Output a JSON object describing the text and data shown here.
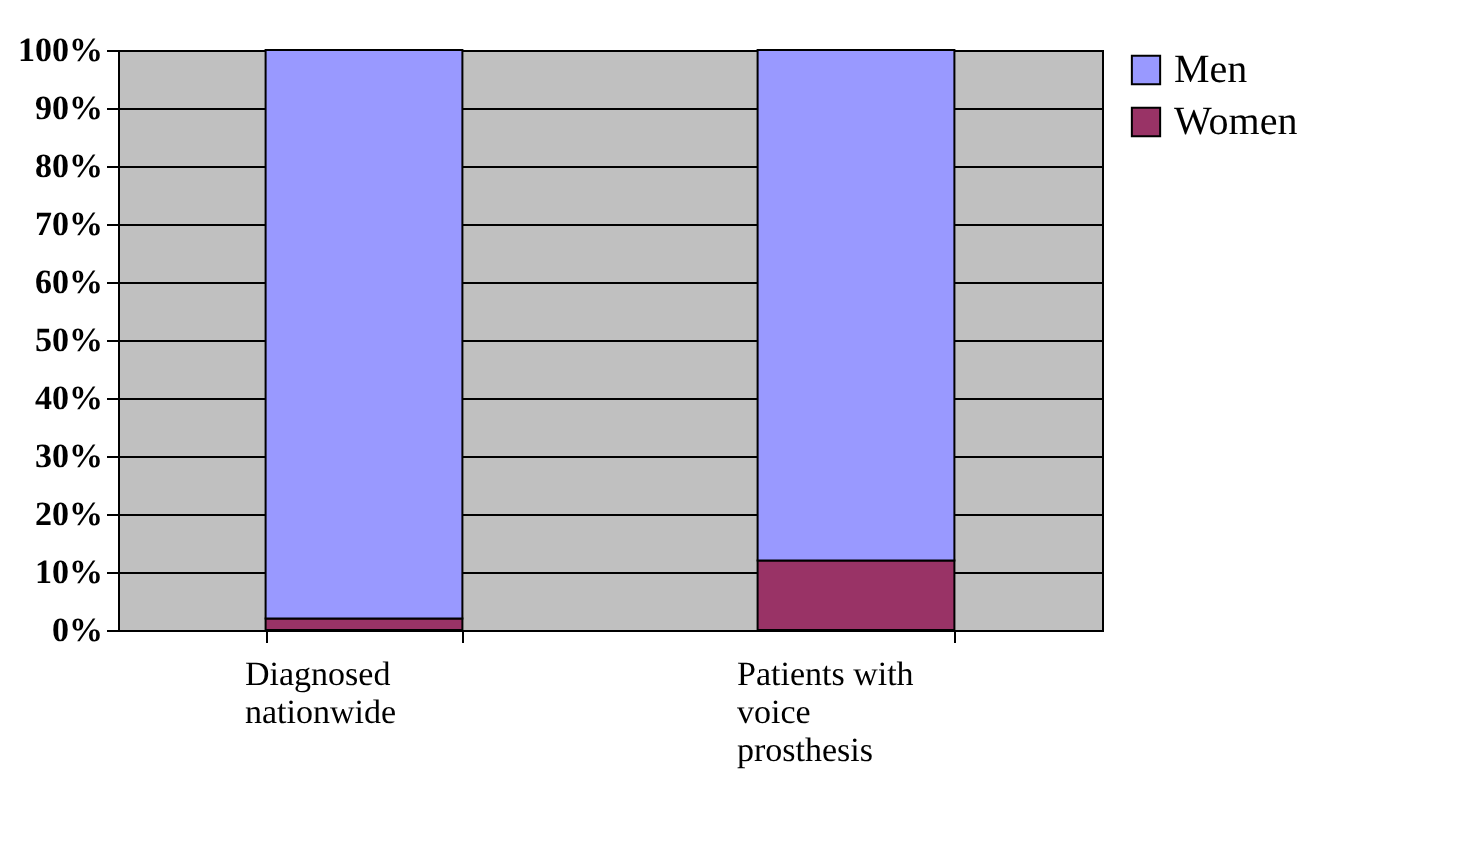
{
  "chart_data": {
    "type": "bar",
    "stacked": true,
    "categories": [
      "Diagnosed nationwide",
      "Patients with voice prosthesis"
    ],
    "series": [
      {
        "name": "Women",
        "color": "#993366",
        "values": [
          2,
          12
        ]
      },
      {
        "name": "Men",
        "color": "#9999ff",
        "values": [
          98,
          88
        ]
      }
    ],
    "ylim": [
      0,
      100
    ],
    "yticks": [
      {
        "value": 0,
        "label": "0%"
      },
      {
        "value": 10,
        "label": "10%"
      },
      {
        "value": 20,
        "label": "20%"
      },
      {
        "value": 30,
        "label": "30%"
      },
      {
        "value": 40,
        "label": "40%"
      },
      {
        "value": 50,
        "label": "50%"
      },
      {
        "value": 60,
        "label": "60%"
      },
      {
        "value": 70,
        "label": "70%"
      },
      {
        "value": 80,
        "label": "80%"
      },
      {
        "value": 90,
        "label": "90%"
      },
      {
        "value": 100,
        "label": "100%"
      }
    ],
    "grid": "y",
    "legend": "right"
  }
}
